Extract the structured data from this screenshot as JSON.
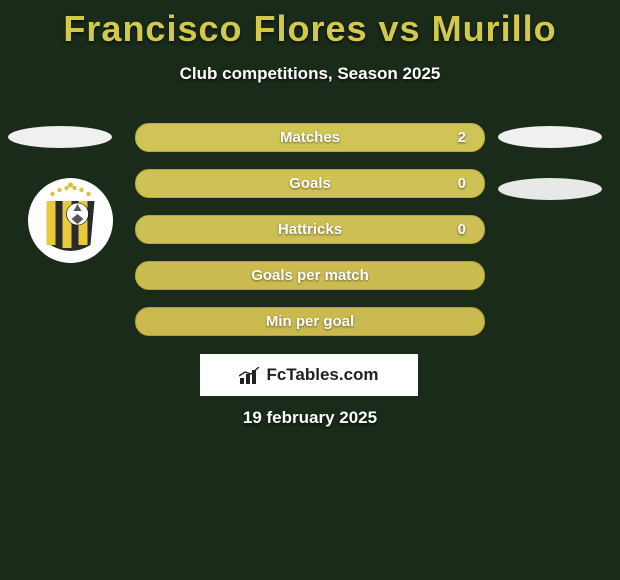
{
  "title": "Francisco Flores vs Murillo",
  "subtitle": "Club competitions, Season 2025",
  "stat_rows": [
    {
      "label": "Matches",
      "value": "2",
      "fill": "#d1c456",
      "border": "#b8ad3c"
    },
    {
      "label": "Goals",
      "value": "0",
      "fill": "#cfc255",
      "border": "#b6aa3b"
    },
    {
      "label": "Hattricks",
      "value": "0",
      "fill": "#cdbf53",
      "border": "#b4a73a"
    },
    {
      "label": "Goals per match",
      "value": "",
      "fill": "#cbbc51",
      "border": "#b2a438"
    },
    {
      "label": "Min per goal",
      "value": "",
      "fill": "#c9b94f",
      "border": "#b0a136"
    }
  ],
  "brand_text": "FcTables.com",
  "date_text": "19 february 2025",
  "badge": {
    "stripe_colors": [
      "#2b2b2b",
      "#e6c93f"
    ],
    "ball_color": "#ffffff",
    "star_color": "#d9c23a"
  }
}
